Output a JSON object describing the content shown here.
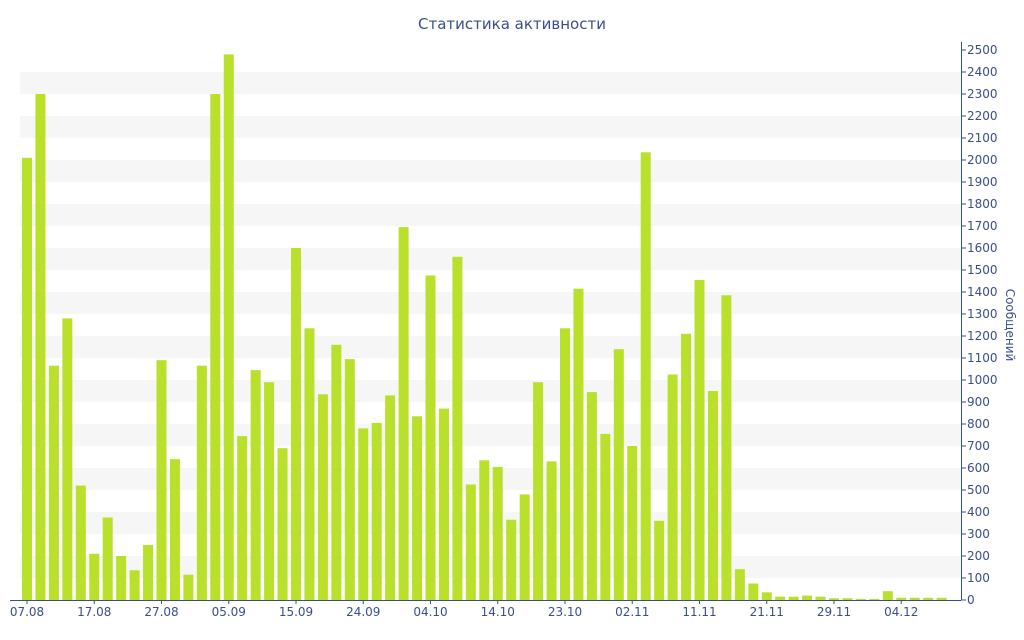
{
  "chart_data": {
    "type": "bar",
    "title": "Статистика активности",
    "ylabel": "Сообщений",
    "xlabel": "",
    "ylim": [
      0,
      2500
    ],
    "y_ticks": [
      0,
      100,
      200,
      300,
      400,
      500,
      600,
      700,
      800,
      900,
      1000,
      1100,
      1200,
      1300,
      1400,
      1500,
      1600,
      1700,
      1800,
      1900,
      2000,
      2100,
      2200,
      2300,
      2400,
      2500
    ],
    "y_axis_side": "right",
    "x_tick_labels": [
      {
        "index": 0,
        "label": "07.08"
      },
      {
        "index": 5,
        "label": "17.08"
      },
      {
        "index": 10,
        "label": "27.08"
      },
      {
        "index": 15,
        "label": "05.09"
      },
      {
        "index": 20,
        "label": "15.09"
      },
      {
        "index": 25,
        "label": "24.09"
      },
      {
        "index": 30,
        "label": "04.10"
      },
      {
        "index": 35,
        "label": "14.10"
      },
      {
        "index": 40,
        "label": "23.10"
      },
      {
        "index": 45,
        "label": "02.11"
      },
      {
        "index": 50,
        "label": "11.11"
      },
      {
        "index": 55,
        "label": "21.11"
      },
      {
        "index": 60,
        "label": "29.11"
      },
      {
        "index": 65,
        "label": "04.12"
      }
    ],
    "values": [
      2010,
      2300,
      1065,
      1280,
      520,
      210,
      375,
      200,
      135,
      250,
      1090,
      640,
      115,
      1065,
      2300,
      2480,
      745,
      1045,
      990,
      690,
      1600,
      1235,
      935,
      1160,
      1095,
      780,
      805,
      930,
      1695,
      835,
      1475,
      870,
      1560,
      525,
      635,
      605,
      365,
      480,
      990,
      630,
      1235,
      1415,
      945,
      755,
      1140,
      700,
      2035,
      360,
      1025,
      1210,
      1455,
      950,
      1385,
      140,
      75,
      35,
      15,
      15,
      20,
      15,
      8,
      8,
      5,
      5,
      40,
      10,
      10,
      10,
      10
    ],
    "bar_color": "#b9e02a",
    "band_color": "#f6f6f6",
    "axis_color": "#3a4f8a",
    "grid": "alternating-bands"
  }
}
